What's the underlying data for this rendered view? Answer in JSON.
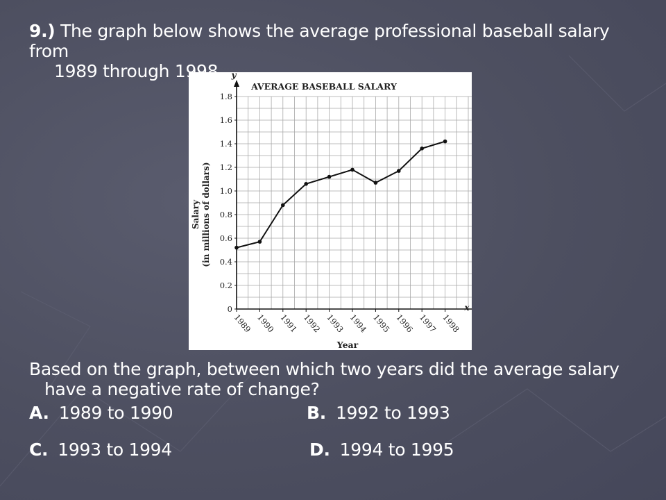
{
  "question": {
    "number": "9.)",
    "line1": "The graph below shows the average professional baseball salary from",
    "line2": "1989 through 1998."
  },
  "prompt": {
    "line1": "Based on the graph, between which two years did the average salary",
    "line2": "have a negative rate of change?"
  },
  "choices": [
    {
      "letter": "A.",
      "text": "1989 to 1990"
    },
    {
      "letter": "B.",
      "text": "1992 to 1993"
    },
    {
      "letter": "C.",
      "text": "1993 to 1994"
    },
    {
      "letter": "D.",
      "text": "1994 to 1995"
    }
  ],
  "chart_data": {
    "type": "line",
    "title": "AVERAGE BASEBALL SALARY",
    "xlabel": "Year",
    "ylabel": "Salary",
    "ylabel_sub": "(in millions of dollars)",
    "x_axis_letter": "x",
    "y_axis_letter": "y",
    "x": [
      "1989",
      "1990",
      "1991",
      "1992",
      "1993",
      "1994",
      "1995",
      "1996",
      "1997",
      "1998"
    ],
    "y": [
      0.52,
      0.57,
      0.88,
      1.06,
      1.12,
      1.18,
      1.07,
      1.17,
      1.36,
      1.42
    ],
    "yticks": [
      "0",
      "0.2",
      "0.4",
      "0.6",
      "0.8",
      "1.0",
      "1.2",
      "1.4",
      "1.6",
      "1.8"
    ],
    "ylim": [
      0,
      1.8
    ],
    "grid": true,
    "colors": {
      "line": "#111111",
      "grid": "#a8a8a8",
      "text": "#222222"
    }
  }
}
